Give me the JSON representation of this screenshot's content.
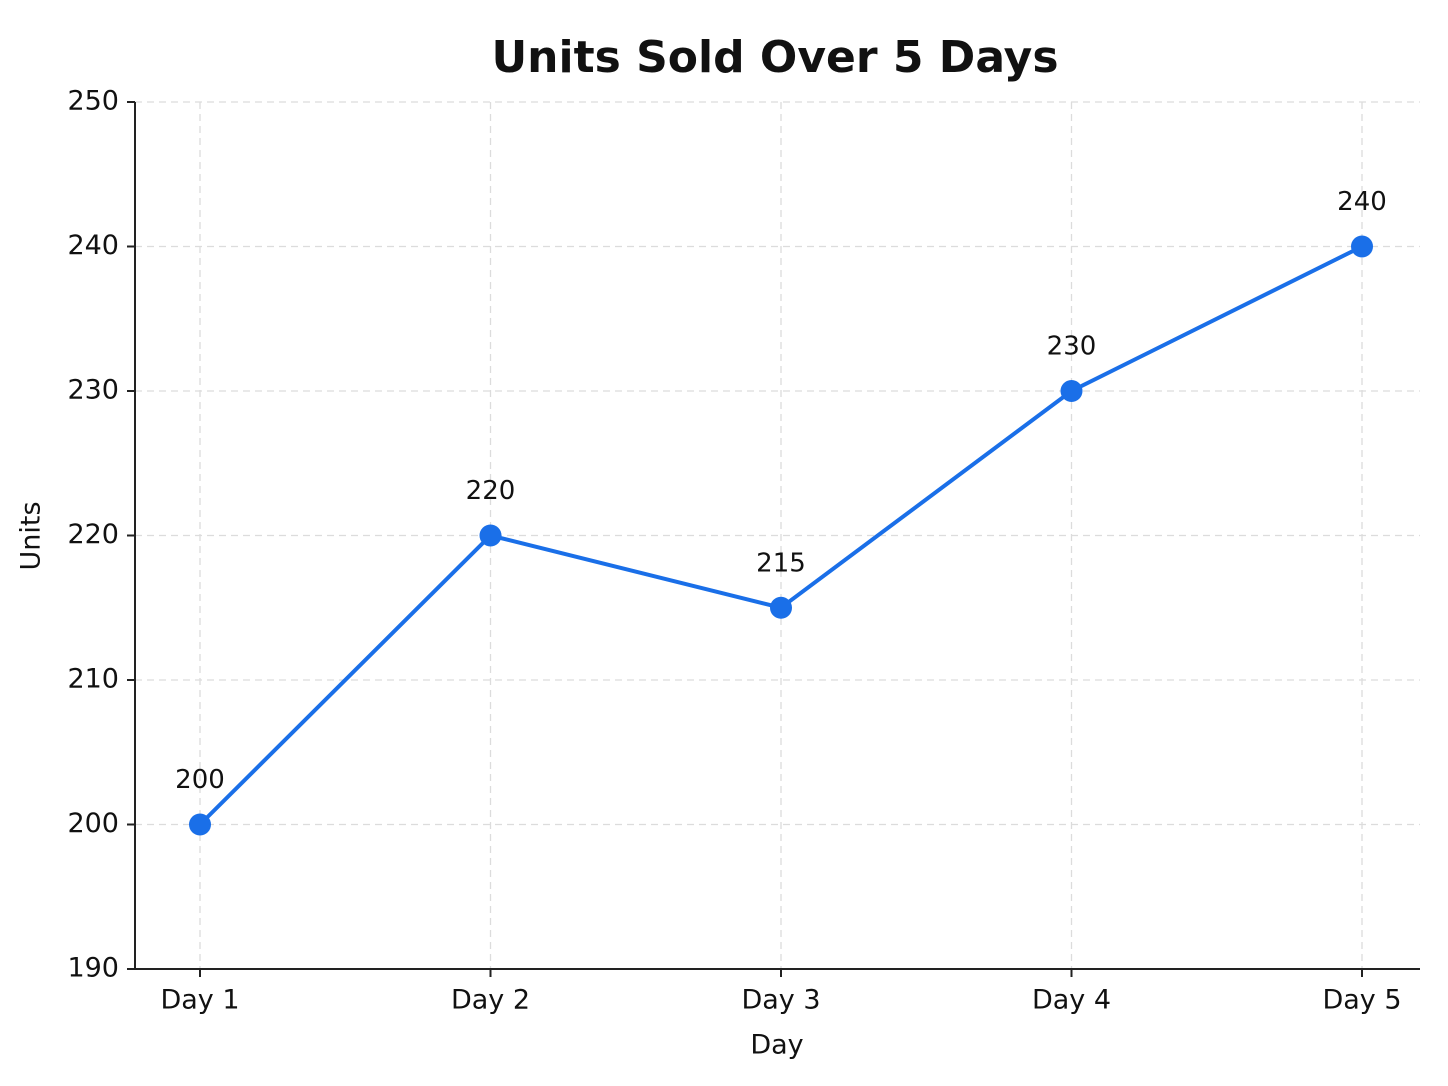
{
  "chart_data": {
    "type": "line",
    "title": "Units Sold Over 5 Days",
    "x_label": "Day",
    "y_label": "Units",
    "categories": [
      "Day 1",
      "Day 2",
      "Day 3",
      "Day 4",
      "Day 5"
    ],
    "values": [
      200,
      220,
      215,
      230,
      240
    ],
    "color": "#1a6fe8",
    "ylim": [
      190,
      250
    ],
    "yticks": [
      190,
      200,
      210,
      220,
      230,
      240,
      250
    ],
    "grid": true
  }
}
